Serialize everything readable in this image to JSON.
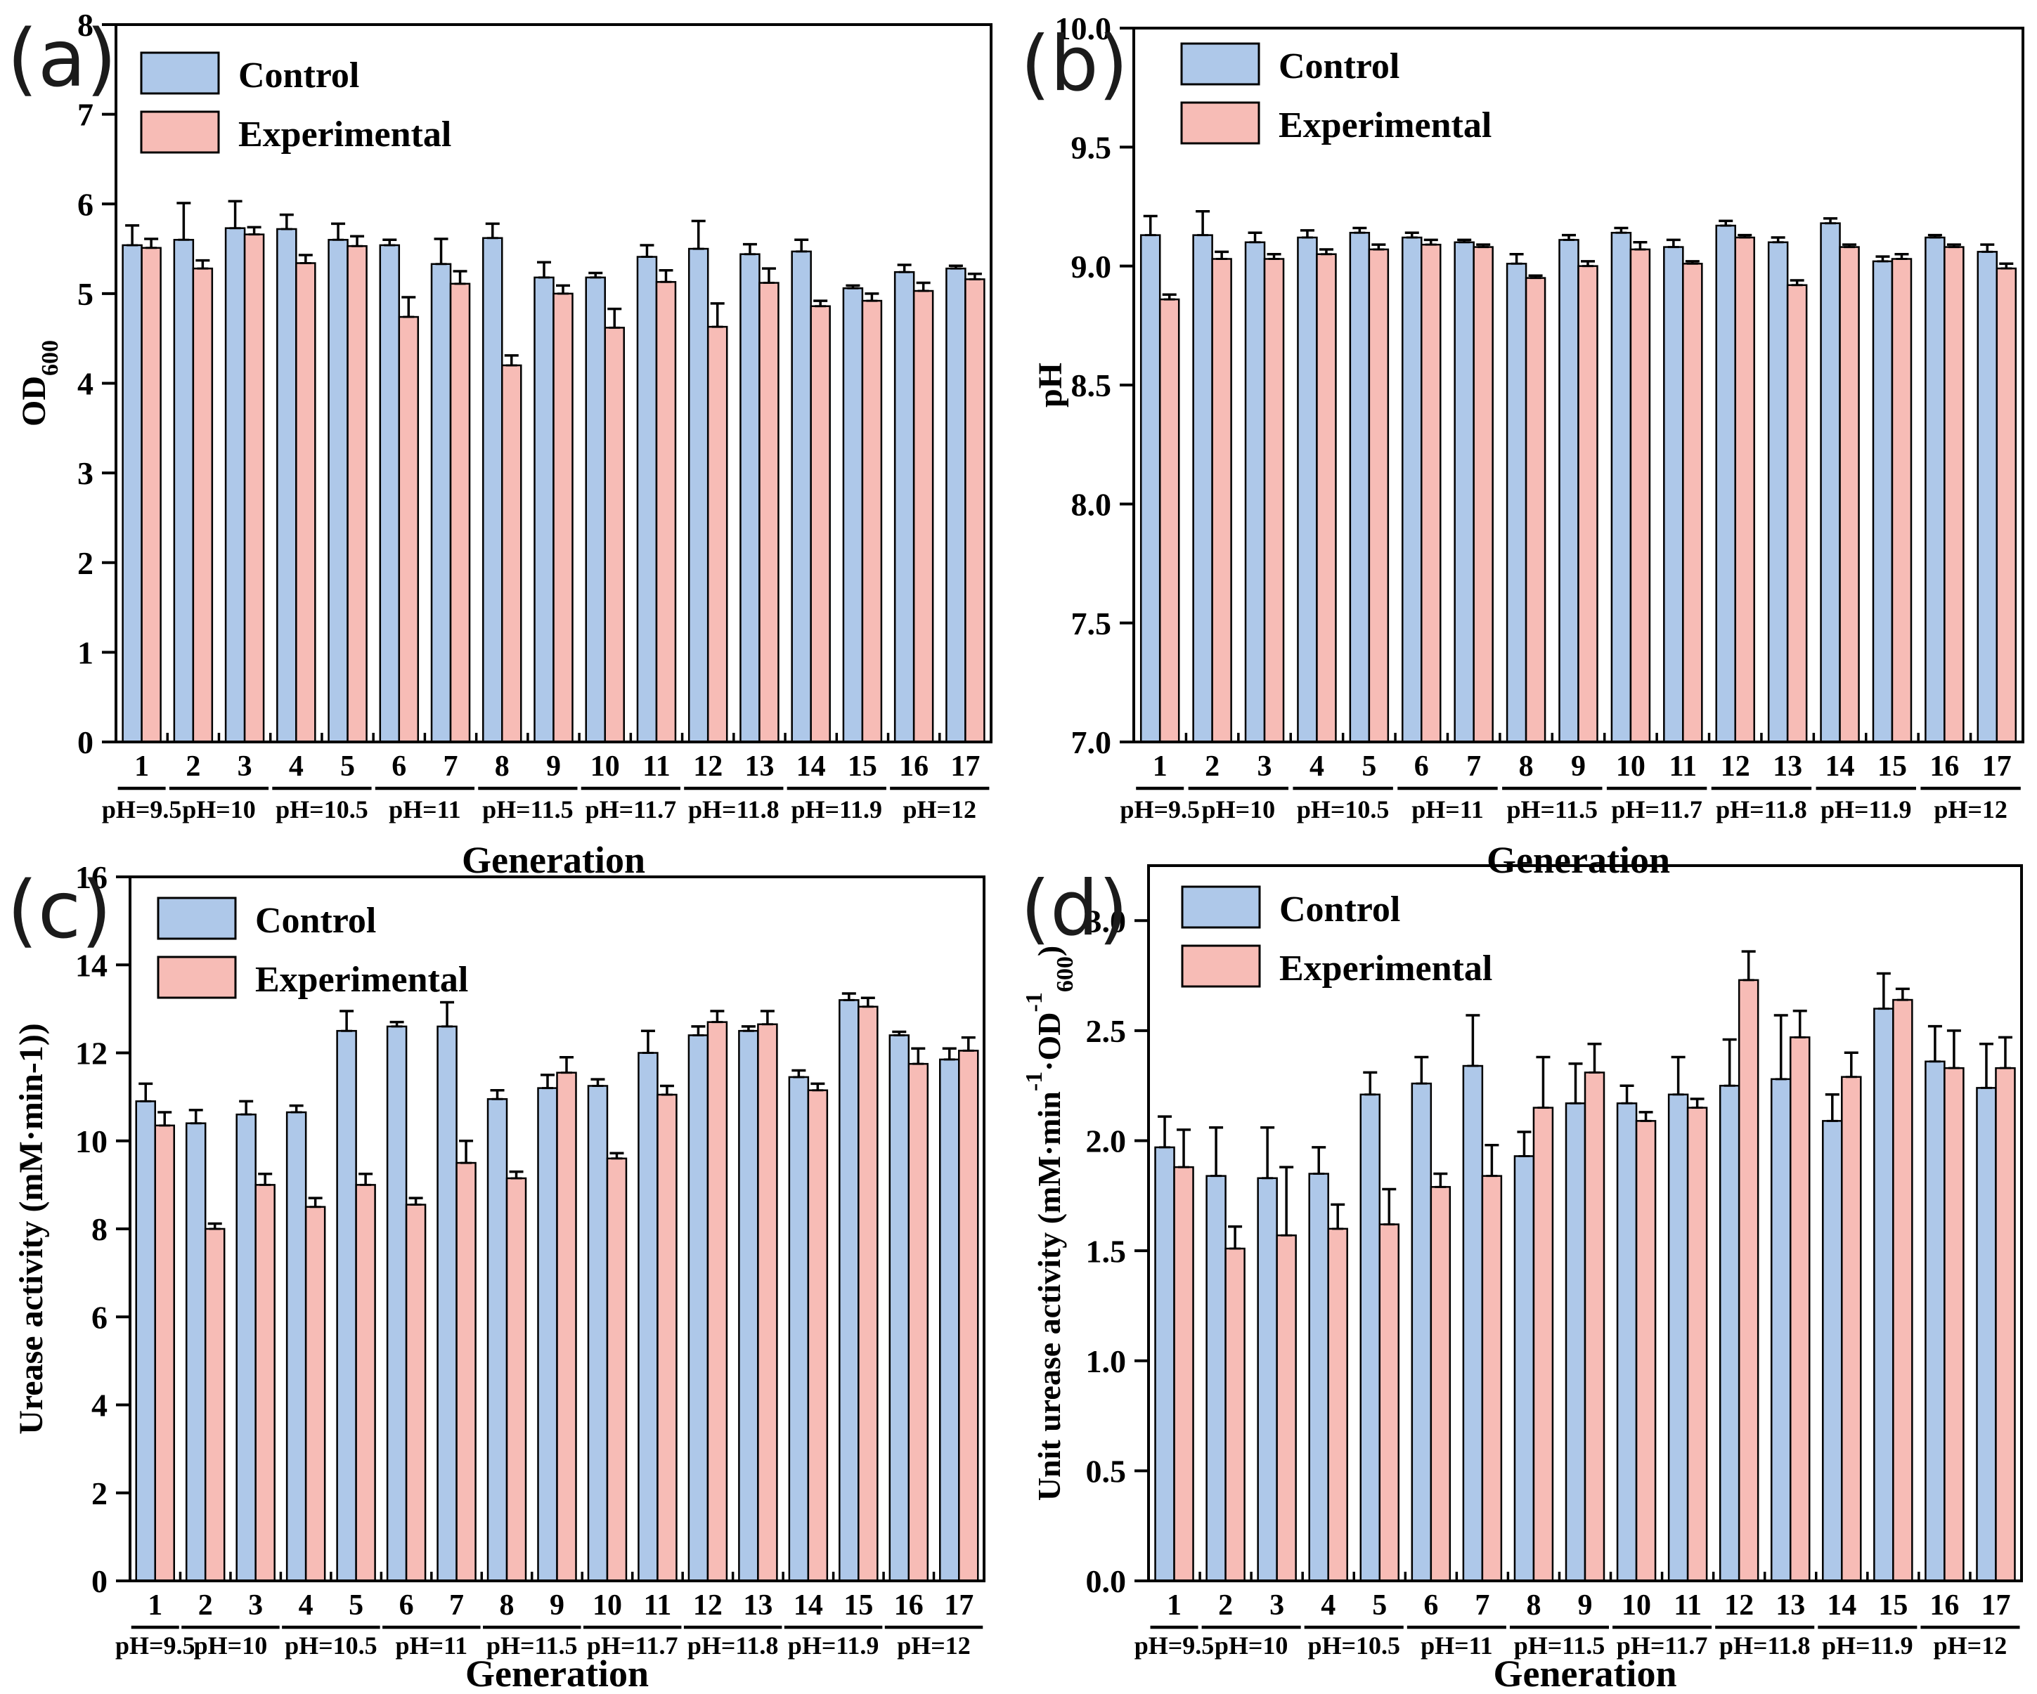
{
  "page": {
    "background": "#ffffff"
  },
  "colors": {
    "control_fill": "#aec8e9",
    "experimental_fill": "#f7bcb6",
    "bar_stroke": "#000000",
    "axis": "#000000",
    "panel_letter": "#1b1b1b"
  },
  "chart_data": [
    {
      "type": "bar",
      "panel_letter": "(a)",
      "xlabel": "Generation",
      "ylabel_plain": "OD600",
      "ylabel_parts": [
        {
          "t": "OD",
          "s": "n"
        },
        {
          "t": "600",
          "s": "sub"
        }
      ],
      "ylim": [
        0,
        8
      ],
      "yticks": [
        "0",
        "1",
        "2",
        "3",
        "4",
        "5",
        "6",
        "7",
        "8"
      ],
      "grid": "off",
      "legend_position": "top-left",
      "categories": [
        "1",
        "2",
        "3",
        "4",
        "5",
        "6",
        "7",
        "8",
        "9",
        "10",
        "11",
        "12",
        "13",
        "14",
        "15",
        "16",
        "17"
      ],
      "groups": [
        {
          "label": "pH=9.5",
          "gens": [
            "1"
          ]
        },
        {
          "label": "pH=10",
          "gens": [
            "2",
            "3"
          ]
        },
        {
          "label": "pH=10.5",
          "gens": [
            "4",
            "5"
          ]
        },
        {
          "label": "pH=11",
          "gens": [
            "6",
            "7"
          ]
        },
        {
          "label": "pH=11.5",
          "gens": [
            "8",
            "9"
          ]
        },
        {
          "label": "pH=11.7",
          "gens": [
            "10",
            "11"
          ]
        },
        {
          "label": "pH=11.8",
          "gens": [
            "12",
            "13"
          ]
        },
        {
          "label": "pH=11.9",
          "gens": [
            "14",
            "15"
          ]
        },
        {
          "label": "pH=12",
          "gens": [
            "16",
            "17"
          ]
        }
      ],
      "series": [
        {
          "name": "Control",
          "values": [
            5.54,
            5.6,
            5.73,
            5.72,
            5.6,
            5.54,
            5.33,
            5.62,
            5.18,
            5.18,
            5.41,
            5.5,
            5.44,
            5.47,
            5.06,
            5.24,
            5.28
          ],
          "errors": [
            0.22,
            0.41,
            0.3,
            0.16,
            0.18,
            0.06,
            0.28,
            0.16,
            0.17,
            0.05,
            0.13,
            0.31,
            0.11,
            0.13,
            0.03,
            0.08,
            0.03
          ]
        },
        {
          "name": "Experimental",
          "values": [
            5.51,
            5.28,
            5.66,
            5.34,
            5.53,
            4.74,
            5.11,
            4.2,
            5.0,
            4.62,
            5.13,
            4.63,
            5.12,
            4.86,
            4.92,
            5.03,
            5.16
          ],
          "errors": [
            0.1,
            0.09,
            0.08,
            0.09,
            0.11,
            0.22,
            0.14,
            0.11,
            0.09,
            0.21,
            0.13,
            0.26,
            0.16,
            0.06,
            0.08,
            0.09,
            0.06
          ]
        }
      ]
    },
    {
      "type": "bar",
      "panel_letter": "(b)",
      "xlabel": "Generation",
      "ylabel_plain": "pH",
      "ylabel_parts": [
        {
          "t": "pH",
          "s": "n"
        }
      ],
      "ylim": [
        7,
        10
      ],
      "yticks": [
        "7.0",
        "7.5",
        "8.0",
        "8.5",
        "9.0",
        "9.5",
        "10.0"
      ],
      "grid": "off",
      "legend_position": "top-left",
      "categories": [
        "1",
        "2",
        "3",
        "4",
        "5",
        "6",
        "7",
        "8",
        "9",
        "10",
        "11",
        "12",
        "13",
        "14",
        "15",
        "16",
        "17"
      ],
      "groups": [
        {
          "label": "pH=9.5",
          "gens": [
            "1"
          ]
        },
        {
          "label": "pH=10",
          "gens": [
            "2",
            "3"
          ]
        },
        {
          "label": "pH=10.5",
          "gens": [
            "4",
            "5"
          ]
        },
        {
          "label": "pH=11",
          "gens": [
            "6",
            "7"
          ]
        },
        {
          "label": "pH=11.5",
          "gens": [
            "8",
            "9"
          ]
        },
        {
          "label": "pH=11.7",
          "gens": [
            "10",
            "11"
          ]
        },
        {
          "label": "pH=11.8",
          "gens": [
            "12",
            "13"
          ]
        },
        {
          "label": "pH=11.9",
          "gens": [
            "14",
            "15"
          ]
        },
        {
          "label": "pH=12",
          "gens": [
            "16",
            "17"
          ]
        }
      ],
      "series": [
        {
          "name": "Control",
          "values": [
            9.13,
            9.13,
            9.1,
            9.12,
            9.14,
            9.12,
            9.1,
            9.01,
            9.11,
            9.14,
            9.08,
            9.17,
            9.1,
            9.18,
            9.02,
            9.12,
            9.06
          ],
          "errors": [
            0.08,
            0.1,
            0.04,
            0.03,
            0.02,
            0.02,
            0.01,
            0.04,
            0.02,
            0.02,
            0.03,
            0.02,
            0.02,
            0.02,
            0.02,
            0.01,
            0.03
          ]
        },
        {
          "name": "Experimental",
          "values": [
            8.86,
            9.03,
            9.03,
            9.05,
            9.07,
            9.09,
            9.08,
            8.95,
            9.0,
            9.07,
            9.01,
            9.12,
            8.92,
            9.08,
            9.03,
            9.08,
            8.99
          ],
          "errors": [
            0.02,
            0.03,
            0.02,
            0.02,
            0.02,
            0.02,
            0.01,
            0.01,
            0.02,
            0.03,
            0.01,
            0.01,
            0.02,
            0.01,
            0.02,
            0.01,
            0.02
          ]
        }
      ]
    },
    {
      "type": "bar",
      "panel_letter": "(c)",
      "xlabel": "Generation",
      "ylabel_plain": "Urease activity (mM·min-1))",
      "ylabel_parts": [
        {
          "t": "Urease activity (mM·min-1))",
          "s": "n"
        }
      ],
      "ylim": [
        0,
        16
      ],
      "yticks": [
        "0",
        "2",
        "4",
        "6",
        "8",
        "10",
        "12",
        "14",
        "16"
      ],
      "grid": "off",
      "legend_position": "top-left",
      "categories": [
        "1",
        "2",
        "3",
        "4",
        "5",
        "6",
        "7",
        "8",
        "9",
        "10",
        "11",
        "12",
        "13",
        "14",
        "15",
        "16",
        "17"
      ],
      "groups": [
        {
          "label": "pH=9.5",
          "gens": [
            "1"
          ]
        },
        {
          "label": "pH=10",
          "gens": [
            "2",
            "3"
          ]
        },
        {
          "label": "pH=10.5",
          "gens": [
            "4",
            "5"
          ]
        },
        {
          "label": "pH=11",
          "gens": [
            "6",
            "7"
          ]
        },
        {
          "label": "pH=11.5",
          "gens": [
            "8",
            "9"
          ]
        },
        {
          "label": "pH=11.7",
          "gens": [
            "10",
            "11"
          ]
        },
        {
          "label": "pH=11.8",
          "gens": [
            "12",
            "13"
          ]
        },
        {
          "label": "pH=11.9",
          "gens": [
            "14",
            "15"
          ]
        },
        {
          "label": "pH=12",
          "gens": [
            "16",
            "17"
          ]
        }
      ],
      "series": [
        {
          "name": "Control",
          "values": [
            10.9,
            10.4,
            10.6,
            10.65,
            12.5,
            12.6,
            12.6,
            10.95,
            11.2,
            11.25,
            12.0,
            12.4,
            12.5,
            11.45,
            13.2,
            12.4,
            11.85
          ],
          "errors": [
            0.4,
            0.3,
            0.3,
            0.15,
            0.45,
            0.1,
            0.55,
            0.2,
            0.3,
            0.15,
            0.5,
            0.2,
            0.1,
            0.15,
            0.15,
            0.08,
            0.25
          ]
        },
        {
          "name": "Experimental",
          "values": [
            10.35,
            8.0,
            9.0,
            8.5,
            9.0,
            8.55,
            9.5,
            9.15,
            11.55,
            9.6,
            11.05,
            12.7,
            12.65,
            11.15,
            13.05,
            11.75,
            12.05
          ],
          "errors": [
            0.3,
            0.12,
            0.25,
            0.2,
            0.25,
            0.15,
            0.5,
            0.15,
            0.35,
            0.12,
            0.2,
            0.25,
            0.3,
            0.15,
            0.2,
            0.35,
            0.3
          ]
        }
      ]
    },
    {
      "type": "bar",
      "panel_letter": "(d)",
      "xlabel": "Generation",
      "ylabel_plain": "Unit urease activity (mM·min-1·OD-1 600)",
      "ylabel_parts": [
        {
          "t": "Unit urease activity (mM·min",
          "s": "n"
        },
        {
          "t": "-1",
          "s": "sup"
        },
        {
          "t": "·OD",
          "s": "n"
        },
        {
          "t": "-1",
          "s": "sup"
        },
        {
          "t": "600",
          "s": "sub"
        },
        {
          "t": ")",
          "s": "n"
        }
      ],
      "ylim": [
        0,
        3.25
      ],
      "yticks": [
        "0.0",
        "0.5",
        "1.0",
        "1.5",
        "2.0",
        "2.5",
        "3.0"
      ],
      "grid": "off",
      "legend_position": "top-left",
      "categories": [
        "1",
        "2",
        "3",
        "4",
        "5",
        "6",
        "7",
        "8",
        "9",
        "10",
        "11",
        "12",
        "13",
        "14",
        "15",
        "16",
        "17"
      ],
      "groups": [
        {
          "label": "pH=9.5",
          "gens": [
            "1"
          ]
        },
        {
          "label": "pH=10",
          "gens": [
            "2",
            "3"
          ]
        },
        {
          "label": "pH=10.5",
          "gens": [
            "4",
            "5"
          ]
        },
        {
          "label": "pH=11",
          "gens": [
            "6",
            "7"
          ]
        },
        {
          "label": "pH=11.5",
          "gens": [
            "8",
            "9"
          ]
        },
        {
          "label": "pH=11.7",
          "gens": [
            "10",
            "11"
          ]
        },
        {
          "label": "pH=11.8",
          "gens": [
            "12",
            "13"
          ]
        },
        {
          "label": "pH=11.9",
          "gens": [
            "14",
            "15"
          ]
        },
        {
          "label": "pH=12",
          "gens": [
            "16",
            "17"
          ]
        }
      ],
      "series": [
        {
          "name": "Control",
          "values": [
            1.97,
            1.84,
            1.83,
            1.85,
            2.21,
            2.26,
            2.34,
            1.93,
            2.17,
            2.17,
            2.21,
            2.25,
            2.28,
            2.09,
            2.6,
            2.36,
            2.24
          ],
          "errors": [
            0.14,
            0.22,
            0.23,
            0.12,
            0.1,
            0.12,
            0.23,
            0.11,
            0.18,
            0.08,
            0.17,
            0.21,
            0.29,
            0.12,
            0.16,
            0.16,
            0.2
          ]
        },
        {
          "name": "Experimental",
          "values": [
            1.88,
            1.51,
            1.57,
            1.6,
            1.62,
            1.79,
            1.84,
            2.15,
            2.31,
            2.09,
            2.15,
            2.73,
            2.47,
            2.29,
            2.64,
            2.33,
            2.33
          ],
          "errors": [
            0.17,
            0.1,
            0.31,
            0.11,
            0.16,
            0.06,
            0.14,
            0.23,
            0.13,
            0.04,
            0.04,
            0.13,
            0.12,
            0.11,
            0.05,
            0.17,
            0.14
          ]
        }
      ]
    }
  ]
}
